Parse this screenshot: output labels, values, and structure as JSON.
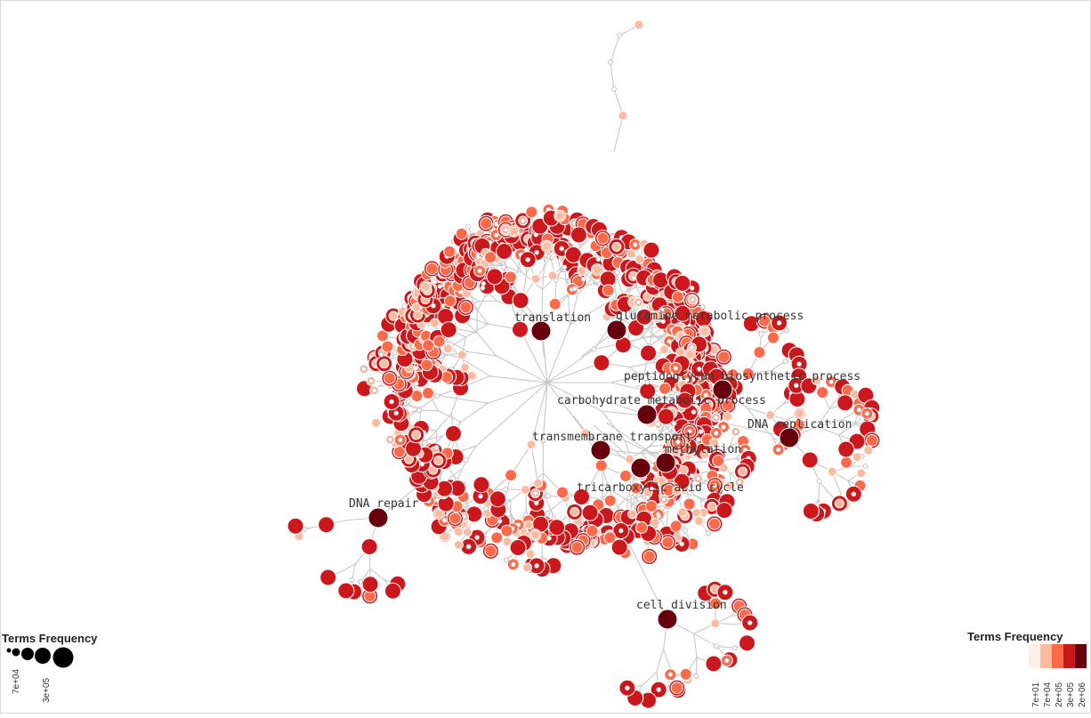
{
  "labels": {
    "translation": "translation",
    "glutamine": "glutamine metabolic process",
    "peptidoglycan": "peptidoglycan biosynthetic process",
    "carbohydrate": "carbohydrate metabolic process",
    "dna_replication": "DNA replication",
    "transmembrane": "transmembrane transport",
    "methylation": "methylation",
    "tca": "tricarboxylic acid cycle",
    "dna_repair": "DNA repair",
    "cell_division": "cell division"
  },
  "size_legend": {
    "title": "Terms Frequency",
    "ticks": [
      "7e+04",
      "3e+05"
    ]
  },
  "color_legend": {
    "title": "Terms Frequency",
    "ticks": [
      "7e+01",
      "7e+04",
      "2e+05",
      "3e+05",
      "2e+06"
    ],
    "colors": [
      "#fef0e8",
      "#fcbba1",
      "#fb6a4a",
      "#cb181d",
      "#67000d"
    ]
  },
  "colors": {
    "edge": "#c8c8c8",
    "level0": "#ffffff",
    "level1": "#fcbba1",
    "level2": "#fb6a4a",
    "level3": "#cb181d",
    "level4": "#67000d"
  }
}
